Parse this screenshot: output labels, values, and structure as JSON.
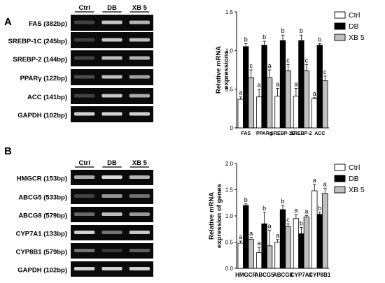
{
  "panels": [
    {
      "letter": "A",
      "gel": {
        "lanes": [
          "Ctrl",
          "DB",
          "XB 5"
        ],
        "rows": [
          {
            "label": "FAS (382bp)",
            "intensity": [
              0.15,
              0.85,
              0.75
            ]
          },
          {
            "label": "SREBP-1C (245bp)",
            "intensity": [
              0.12,
              0.85,
              0.8
            ]
          },
          {
            "label": "SREBP-2 (144bp)",
            "intensity": [
              0.15,
              0.8,
              0.75
            ]
          },
          {
            "label": "PPARγ (122bp)",
            "intensity": [
              0.2,
              0.8,
              0.65
            ]
          },
          {
            "label": "ACC (141bp)",
            "intensity": [
              0.15,
              0.85,
              0.7
            ]
          },
          {
            "label": "GAPDH (102bp)",
            "intensity": [
              0.9,
              0.9,
              0.9
            ]
          }
        ]
      },
      "chart_data": {
        "type": "bar",
        "title": "",
        "xlabel": "",
        "ylabel_lines": [
          "Relative mRNA",
          "expressions"
        ],
        "ylim": [
          0,
          1.5
        ],
        "yticks": [
          "0",
          "0.5",
          "1.0",
          "1.5"
        ],
        "categories": [
          "FAS",
          "PPARg",
          "SREBP-1C",
          "SREBP-2",
          "ACC"
        ],
        "series": [
          {
            "name": "Ctrl",
            "fill": "#ffffff",
            "values": [
              0.37,
              0.4,
              0.41,
              0.41,
              0.38
            ],
            "errors": [
              0.03,
              0.1,
              0.1,
              0.1,
              0.01
            ],
            "labels": [
              "a",
              "a",
              "a",
              "a",
              "a"
            ]
          },
          {
            "name": "DB",
            "fill": "#000000",
            "values": [
              1.05,
              1.07,
              1.13,
              1.13,
              1.07
            ],
            "errors": [
              0.04,
              0.05,
              0.07,
              0.07,
              0.02
            ],
            "labels": [
              "b",
              "b",
              "b",
              "b",
              "b"
            ]
          },
          {
            "name": "XB 5",
            "fill": "#bfbfbf",
            "values": [
              0.65,
              0.65,
              0.74,
              0.74,
              0.61
            ],
            "errors": [
              0.1,
              0.1,
              0.08,
              0.08,
              0.06
            ],
            "labels": [
              "c",
              "a",
              "c",
              "c",
              "c"
            ]
          }
        ],
        "legend_position": "top-right"
      }
    },
    {
      "letter": "B",
      "gel": {
        "lanes": [
          "Ctrl",
          "DB",
          "XB 5"
        ],
        "rows": [
          {
            "label": "HMGCR (153bp)",
            "intensity": [
              0.7,
              0.95,
              0.75
            ]
          },
          {
            "label": "ABCG5 (533bp)",
            "intensity": [
              0.15,
              0.6,
              0.4
            ]
          },
          {
            "label": "ABCG8 (579bp)",
            "intensity": [
              0.35,
              0.8,
              0.6
            ]
          },
          {
            "label": "CYP7A1 (133bp)",
            "intensity": [
              0.9,
              0.4,
              0.85
            ]
          },
          {
            "label": "CYP8B1 (579bp)",
            "intensity": [
              0.4,
              0.1,
              0.3
            ]
          },
          {
            "label": "GAPDH (102bp)",
            "intensity": [
              0.9,
              0.9,
              0.9
            ]
          }
        ]
      },
      "chart_data": {
        "type": "bar",
        "title": "",
        "xlabel": "",
        "ylabel_lines": [
          "Relative mRNA",
          "expression of genes"
        ],
        "ylim": [
          0,
          2.0
        ],
        "yticks": [
          "0.0",
          "0.5",
          "1.0",
          "1.5",
          "2.0"
        ],
        "categories": [
          "HMGCR",
          "ABCG5",
          "ABCG8",
          "CYP7A1",
          "CYP8B1"
        ],
        "series": [
          {
            "name": "Ctrl",
            "fill": "#ffffff",
            "values": [
              0.48,
              0.3,
              0.5,
              0.95,
              1.48
            ],
            "errors": [
              0.04,
              0.1,
              0.05,
              0.08,
              0.12
            ],
            "labels": [
              "a",
              "a",
              "a",
              "a",
              "a"
            ]
          },
          {
            "name": "DB",
            "fill": "#000000",
            "values": [
              1.2,
              0.85,
              1.12,
              0.66,
              1.03
            ],
            "errors": [
              0.03,
              0.22,
              0.08,
              0.12,
              0.04
            ],
            "labels": [
              "b",
              "b",
              "b",
              "b",
              "b"
            ]
          },
          {
            "name": "XB 5",
            "fill": "#bfbfbf",
            "values": [
              0.55,
              0.43,
              0.8,
              0.98,
              1.43
            ],
            "errors": [
              0.04,
              0.3,
              0.05,
              0.03,
              0.1
            ],
            "labels": [
              "a",
              "a",
              "c",
              "a",
              "a"
            ]
          }
        ],
        "legend_position": "top-right"
      }
    }
  ]
}
